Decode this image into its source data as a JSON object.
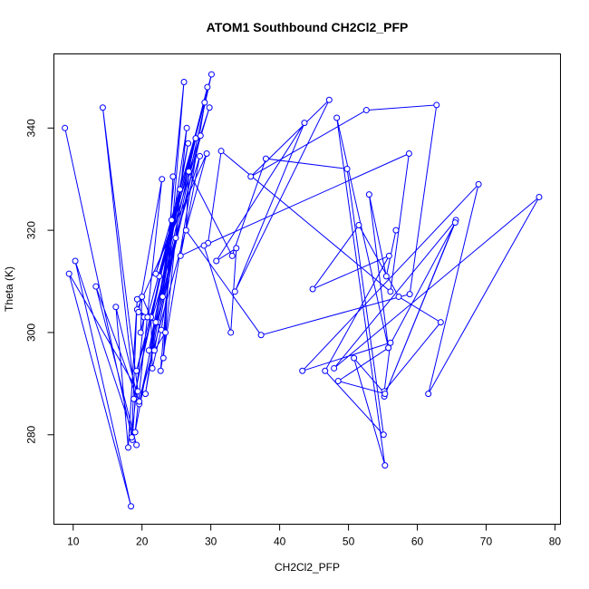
{
  "chart_data": {
    "type": "scatter",
    "title": "ATOM1 Southbound CH2Cl2_PFP",
    "xlabel": "CH2Cl2_PFP",
    "ylabel": "Theta (K)",
    "xlim": [
      7.2,
      80.8
    ],
    "ylim": [
      262.5,
      354.5
    ],
    "xticks": [
      10,
      20,
      30,
      40,
      50,
      60,
      70,
      80
    ],
    "yticks": [
      280,
      300,
      320,
      340
    ],
    "grid": false,
    "legend": "none",
    "mode": "points+lines",
    "series": [
      {
        "color": "#0000ff",
        "x": [
          8.8,
          18.6,
          19.0,
          14.3,
          19.4,
          9.4,
          18.4,
          10.3,
          19.2,
          13.3,
          19.6,
          16.2,
          18.0,
          19.3,
          18.5,
          20.3,
          19.8,
          20.0,
          21.3,
          21.5,
          22.8,
          24.9,
          21.8,
          23.4,
          24.5,
          23.1,
          26.5,
          22.3,
          28.5,
          23.0,
          26.1,
          22.7,
          29.5,
          22.5,
          29.8,
          22.0,
          29.1,
          20.8,
          30.1,
          19.6,
          29.4,
          19.3,
          22.0,
          19.5,
          22.9,
          19.0,
          25.5,
          18.8,
          24.3,
          20.5,
          26.7,
          21.0,
          27.8,
          19.2,
          28.4,
          25.6,
          29.6,
          31.5,
          56.1,
          58.8,
          29.0,
          32.9,
          33.7,
          30.8,
          43.6,
          33.5,
          47.2,
          35.8,
          52.6,
          62.8,
          58.9,
          37.3,
          26.4,
          26.8,
          33.1,
          38.0,
          49.8,
          55.1,
          46.6,
          55.9,
          44.8,
          51.5,
          57.3,
          63.4,
          55.2,
          56.1,
          43.3,
          68.9,
          61.6,
          77.7,
          47.9,
          65.6,
          55.2,
          65.5,
          55.8,
          48.5,
          55.3,
          50.8,
          55.3,
          48.3,
          55.8,
          53.0,
          55.5,
          56.9
        ],
        "y": [
          340.0,
          279.0,
          287.0,
          344.0,
          288.5,
          311.5,
          266.0,
          314.0,
          278.0,
          309.0,
          286.0,
          305.0,
          277.5,
          306.5,
          279.5,
          303.0,
          300.0,
          307.0,
          303.0,
          293.0,
          300.5,
          318.5,
          296.5,
          300.0,
          330.5,
          295.0,
          340.0,
          302.0,
          338.5,
          307.0,
          349.0,
          292.5,
          348.0,
          311.0,
          344.0,
          311.5,
          345.0,
          303.0,
          350.5,
          286.5,
          335.0,
          304.5,
          302.0,
          304.0,
          330.0,
          280.5,
          328.0,
          287.0,
          322.0,
          288.0,
          337.0,
          296.5,
          338.0,
          292.5,
          334.5,
          315.0,
          317.5,
          335.5,
          308.0,
          335.0,
          317.0,
          300.0,
          316.5,
          314.0,
          341.0,
          308.0,
          345.5,
          330.5,
          343.5,
          344.5,
          307.5,
          299.5,
          320.0,
          331.5,
          315.0,
          334.0,
          332.0,
          280.0,
          292.5,
          315.0,
          308.5,
          321.0,
          307.0,
          302.0,
          288.5,
          298.0,
          292.5,
          329.0,
          288.0,
          326.5,
          293.0,
          322.0,
          287.5,
          321.5,
          297.0,
          290.5,
          288.0,
          295.0,
          274.0,
          342.0,
          297.0,
          327.0,
          311.0,
          320.0
        ]
      }
    ]
  }
}
